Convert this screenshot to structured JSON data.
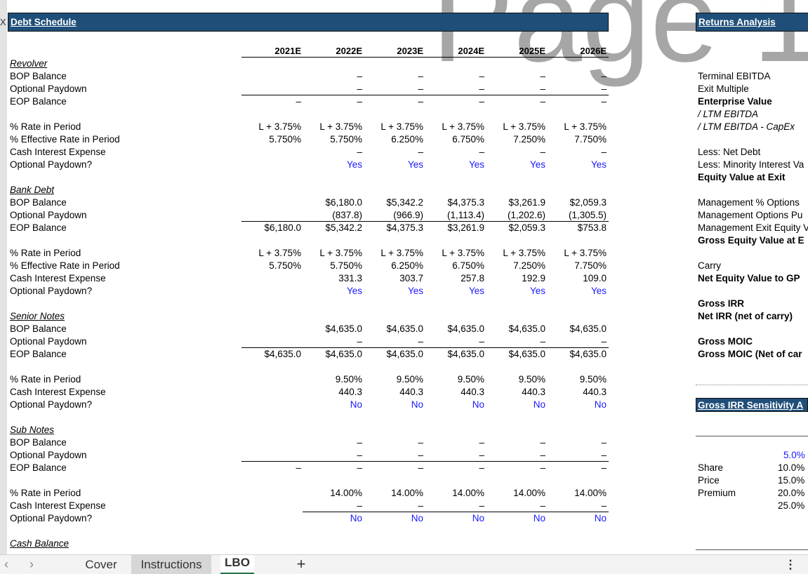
{
  "watermark": "Page 1",
  "edge_mark": "X",
  "debt_title": "Debt Schedule",
  "returns_title": "Returns Analysis",
  "sensitivity_title": "Gross IRR Sensitivity A",
  "years": [
    "2021E",
    "2022E",
    "2023E",
    "2024E",
    "2025E",
    "2026E"
  ],
  "revolver": {
    "section": "Revolver",
    "bop_label": "BOP Balance",
    "paydown_label": "Optional Paydown",
    "eop_label": "EOP Balance",
    "bop": [
      "",
      "–",
      "–",
      "–",
      "–",
      "–"
    ],
    "paydown": [
      "",
      "–",
      "–",
      "–",
      "–",
      "–"
    ],
    "eop": [
      "–",
      "–",
      "–",
      "–",
      "–",
      "–"
    ],
    "rate_label": "% Rate in Period",
    "eff_label": "% Effective Rate in Period",
    "cash_label": "Cash Interest Expense",
    "opt_label": "Optional Paydown?",
    "rate": [
      "L + 3.75%",
      "L + 3.75%",
      "L + 3.75%",
      "L + 3.75%",
      "L + 3.75%",
      "L + 3.75%"
    ],
    "eff": [
      "5.750%",
      "5.750%",
      "6.250%",
      "6.750%",
      "7.250%",
      "7.750%"
    ],
    "cash": [
      "",
      "–",
      "–",
      "–",
      "–",
      "–"
    ],
    "opt": [
      "",
      "Yes",
      "Yes",
      "Yes",
      "Yes",
      "Yes"
    ]
  },
  "bank": {
    "section": "Bank Debt",
    "bop_label": "BOP Balance",
    "paydown_label": "Optional Paydown",
    "eop_label": "EOP Balance",
    "bop": [
      "",
      "$6,180.0",
      "$5,342.2",
      "$4,375.3",
      "$3,261.9",
      "$2,059.3"
    ],
    "paydown": [
      "",
      "(837.8)",
      "(966.9)",
      "(1,113.4)",
      "(1,202.6)",
      "(1,305.5)"
    ],
    "eop": [
      "$6,180.0",
      "$5,342.2",
      "$4,375.3",
      "$3,261.9",
      "$2,059.3",
      "$753.8"
    ],
    "rate_label": "% Rate in Period",
    "eff_label": "% Effective Rate in Period",
    "cash_label": "Cash Interest Expense",
    "opt_label": "Optional Paydown?",
    "rate": [
      "L + 3.75%",
      "L + 3.75%",
      "L + 3.75%",
      "L + 3.75%",
      "L + 3.75%",
      "L + 3.75%"
    ],
    "eff": [
      "5.750%",
      "5.750%",
      "6.250%",
      "6.750%",
      "7.250%",
      "7.750%"
    ],
    "cash": [
      "",
      "331.3",
      "303.7",
      "257.8",
      "192.9",
      "109.0"
    ],
    "opt": [
      "",
      "Yes",
      "Yes",
      "Yes",
      "Yes",
      "Yes"
    ]
  },
  "senior": {
    "section": "Senior Notes",
    "bop_label": "BOP Balance",
    "paydown_label": "Optional Paydown",
    "eop_label": "EOP Balance",
    "bop": [
      "",
      "$4,635.0",
      "$4,635.0",
      "$4,635.0",
      "$4,635.0",
      "$4,635.0"
    ],
    "paydown": [
      "",
      "–",
      "–",
      "–",
      "–",
      "–"
    ],
    "eop": [
      "$4,635.0",
      "$4,635.0",
      "$4,635.0",
      "$4,635.0",
      "$4,635.0",
      "$4,635.0"
    ],
    "rate_label": "% Rate in Period",
    "cash_label": "Cash Interest Expense",
    "opt_label": "Optional Paydown?",
    "rate": [
      "",
      "9.50%",
      "9.50%",
      "9.50%",
      "9.50%",
      "9.50%"
    ],
    "cash": [
      "",
      "440.3",
      "440.3",
      "440.3",
      "440.3",
      "440.3"
    ],
    "opt": [
      "",
      "No",
      "No",
      "No",
      "No",
      "No"
    ]
  },
  "sub": {
    "section": "Sub Notes",
    "bop_label": "BOP Balance",
    "paydown_label": "Optional Paydown",
    "eop_label": "EOP Balance",
    "bop": [
      "",
      "–",
      "–",
      "–",
      "–",
      "–"
    ],
    "paydown": [
      "",
      "–",
      "–",
      "–",
      "–",
      "–"
    ],
    "eop": [
      "–",
      "–",
      "–",
      "–",
      "–",
      "–"
    ],
    "rate_label": "% Rate in Period",
    "cash_label": "Cash Interest Expense",
    "opt_label": "Optional Paydown?",
    "rate": [
      "",
      "14.00%",
      "14.00%",
      "14.00%",
      "14.00%",
      "14.00%"
    ],
    "cash": [
      "",
      "–",
      "–",
      "–",
      "–",
      "–"
    ],
    "opt": [
      "",
      "No",
      "No",
      "No",
      "No",
      "No"
    ]
  },
  "cash_balance_label": "Cash Balance",
  "returns": {
    "terminal_ebitda": "Terminal EBITDA",
    "exit_multiple": "Exit Multiple",
    "enterprise_value": "Enterprise Value",
    "ltm_ebitda": "/ LTM EBITDA",
    "ltm_ebitda_capex": "/ LTM EBITDA - CapEx",
    "less_net_debt": "Less: Net Debt",
    "less_minority": "Less: Minority Interest Va",
    "equity_value_exit": "Equity Value at Exit",
    "mgmt_options": "Management % Options",
    "mgmt_options_pu": "Management Options Pu",
    "mgmt_exit_equity": "Management Exit Equity V",
    "gross_equity_value": "Gross Equity Value at E",
    "carry": "Carry",
    "net_equity_gp": "Net Equity Value to GP",
    "gross_irr": "Gross IRR",
    "net_irr": "Net IRR (net of carry)",
    "gross_moic": "Gross MOIC",
    "gross_moic_net": "Gross MOIC (Net of car"
  },
  "sensitivity": {
    "row_labels": [
      "Share",
      "Price",
      "Premium"
    ],
    "values": [
      "5.0%",
      "10.0%",
      "15.0%",
      "20.0%",
      "25.0%"
    ]
  },
  "tabs": {
    "prev": "‹",
    "next": "›",
    "cover": "Cover",
    "instructions": "Instructions",
    "lbo": "LBO",
    "add": "+",
    "more": "⋮"
  }
}
